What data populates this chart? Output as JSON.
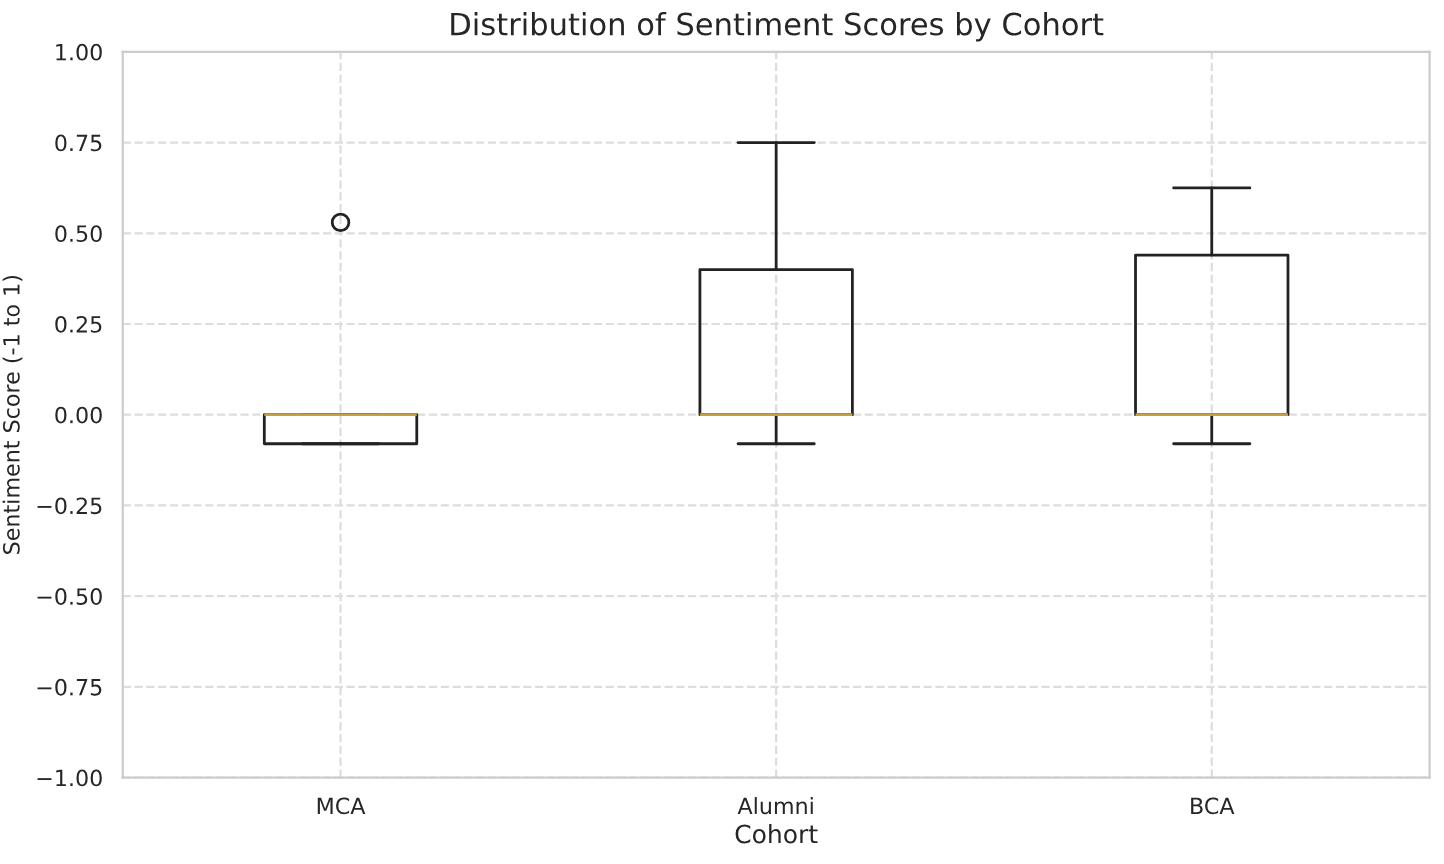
{
  "chart_data": {
    "type": "box",
    "title": "Distribution of Sentiment Scores by Cohort",
    "xlabel": "Cohort",
    "ylabel": "Sentiment Score (-1 to 1)",
    "categories": [
      "MCA",
      "Alumni",
      "BCA"
    ],
    "boxes": [
      {
        "low": -0.08,
        "q1": -0.08,
        "median": 0,
        "q3": 0,
        "high": 0,
        "outliers": [
          0.53
        ]
      },
      {
        "low": -0.08,
        "q1": 0,
        "median": 0,
        "q3": 0.4,
        "high": 0.75
      },
      {
        "low": -0.08,
        "q1": 0,
        "median": 0,
        "q3": 0.44,
        "high": 0.625
      }
    ],
    "ylim": [
      -1,
      1
    ],
    "yticks": [
      {
        "value": -1,
        "label": "−1.00"
      },
      {
        "value": -0.75,
        "label": "−0.75"
      },
      {
        "value": -0.5,
        "label": "−0.50"
      },
      {
        "value": -0.25,
        "label": "−0.25"
      },
      {
        "value": 0,
        "label": "0.00"
      },
      {
        "value": 0.25,
        "label": "0.25"
      },
      {
        "value": 0.5,
        "label": "0.50"
      },
      {
        "value": 0.75,
        "label": "0.75"
      },
      {
        "value": 1,
        "label": "1.00"
      }
    ],
    "grid": true
  }
}
